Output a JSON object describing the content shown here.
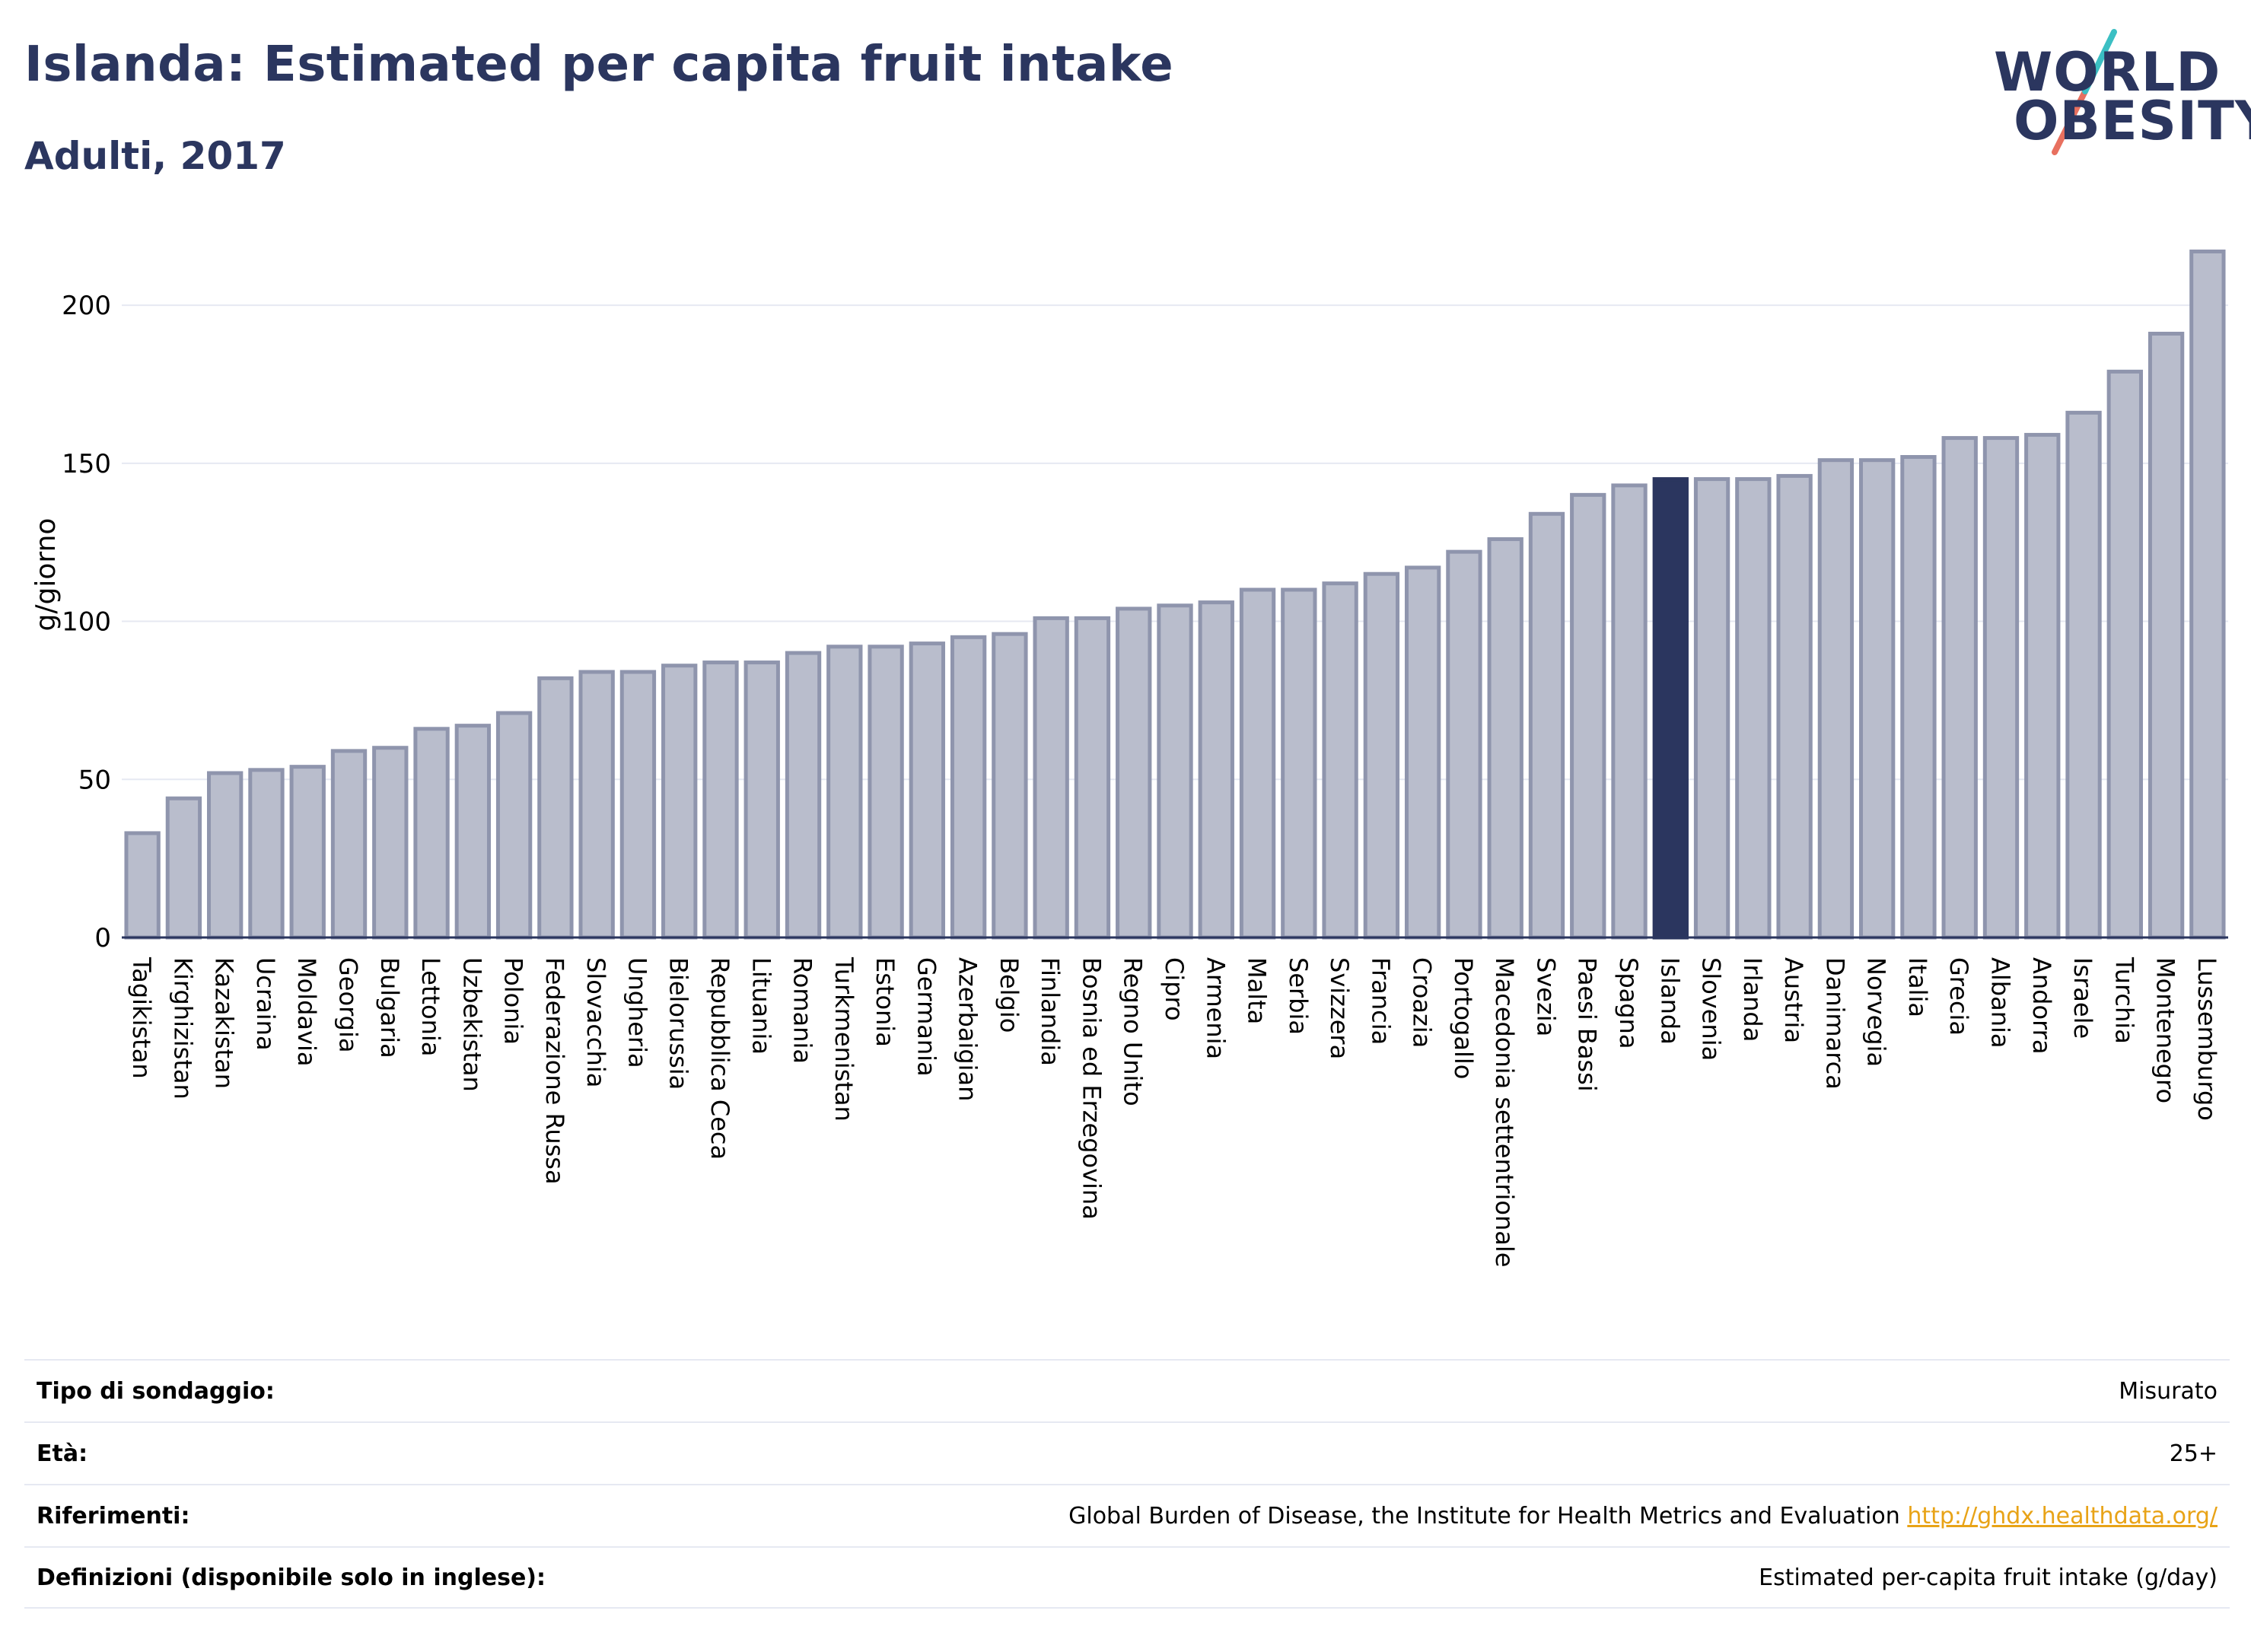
{
  "header": {
    "title": "Islanda: Estimated per capita fruit intake",
    "subtitle": "Adulti, 2017"
  },
  "logo": {
    "line1": "WORLD",
    "line2": "OBESITY"
  },
  "colors": {
    "bar": "#b9bdcc",
    "bar_border": "#8f95ad",
    "highlight": "#2b365f",
    "grid": "#e6e9f2",
    "axis": "#2b365f"
  },
  "chart_data": {
    "type": "bar",
    "ylabel": "g/giorno",
    "ylim": [
      0,
      220
    ],
    "yticks": [
      0,
      50,
      100,
      150,
      200
    ],
    "highlight": "Islanda",
    "categories": [
      "Tagikistan",
      "Kirghizistan",
      "Kazakistan",
      "Ucraina",
      "Moldavia",
      "Georgia",
      "Bulgaria",
      "Lettonia",
      "Uzbekistan",
      "Polonia",
      "Federazione Russa",
      "Slovacchia",
      "Ungheria",
      "Bielorussia",
      "Repubblica Ceca",
      "Lituania",
      "Romania",
      "Turkmenistan",
      "Estonia",
      "Germania",
      "Azerbaigian",
      "Belgio",
      "Finlandia",
      "Bosnia ed Erzegovina",
      "Regno Unito",
      "Cipro",
      "Armenia",
      "Malta",
      "Serbia",
      "Svizzera",
      "Francia",
      "Croazia",
      "Portogallo",
      "Macedonia settentrionale",
      "Svezia",
      "Paesi Bassi",
      "Spagna",
      "Islanda",
      "Slovenia",
      "Irlanda",
      "Austria",
      "Danimarca",
      "Norvegia",
      "Italia",
      "Grecia",
      "Albania",
      "Andorra",
      "Israele",
      "Turchia",
      "Montenegro",
      "Lussemburgo"
    ],
    "values": [
      33,
      44,
      52,
      53,
      54,
      59,
      60,
      66,
      67,
      71,
      82,
      84,
      84,
      86,
      87,
      87,
      90,
      92,
      92,
      93,
      95,
      96,
      101,
      101,
      104,
      105,
      106,
      110,
      110,
      112,
      115,
      117,
      122,
      126,
      134,
      140,
      143,
      145,
      145,
      145,
      146,
      151,
      151,
      152,
      158,
      158,
      159,
      166,
      179,
      191,
      217
    ]
  },
  "meta": {
    "rows": [
      {
        "label": "Tipo di sondaggio:",
        "value": "Misurato"
      },
      {
        "label": "Età:",
        "value": "25+"
      },
      {
        "label": "Riferimenti:",
        "value": "Global Burden of Disease, the Institute for Health Metrics and Evaluation",
        "link": "http://ghdx.healthdata.org/"
      },
      {
        "label": "Definizioni (disponibile solo in inglese):",
        "value": "Estimated per-capita fruit intake (g/day)"
      }
    ]
  }
}
